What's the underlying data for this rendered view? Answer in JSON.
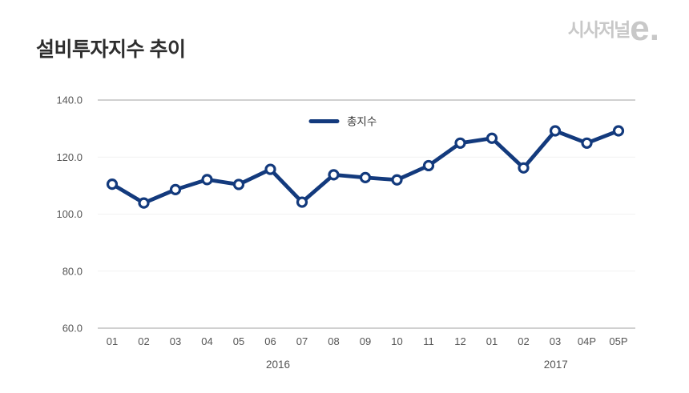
{
  "brand": {
    "name": "시사저널",
    "e_mark": "e."
  },
  "header": {
    "title": "설비투자지수 추이"
  },
  "chart_data": {
    "type": "line",
    "title": "설비투자지수 추이",
    "categories": [
      "01",
      "02",
      "03",
      "04",
      "05",
      "06",
      "07",
      "08",
      "09",
      "10",
      "11",
      "12",
      "01",
      "02",
      "03",
      "04P",
      "05P"
    ],
    "series": [
      {
        "name": "총지수",
        "values": [
          110.5,
          103.9,
          108.6,
          112.1,
          110.4,
          115.7,
          104.2,
          113.8,
          112.8,
          112.0,
          117.0,
          124.9,
          126.6,
          116.2,
          129.2,
          124.9,
          129.2
        ]
      }
    ],
    "year_groups": [
      {
        "label": "2016"
      },
      {
        "label": "2017"
      }
    ],
    "y_ticks": [
      140.0,
      120.0,
      100.0,
      80.0,
      60.0
    ],
    "ylim": [
      60,
      140
    ],
    "grid": true,
    "legend_position": "top-center",
    "colors": {
      "line": "#133a7d",
      "marker_fill": "#ffffff",
      "grid_major": "#b5b5b5",
      "grid_minor": "#f1f1f1",
      "tick_text": "#555555",
      "legend_text": "#333333",
      "title_text": "#2d2d2d",
      "logo": "#c8c8c8"
    }
  }
}
